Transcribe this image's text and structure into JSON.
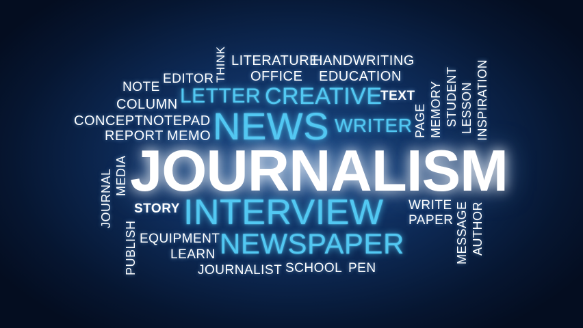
{
  "words": {
    "journalism": "JOURNALISM",
    "interview": "INTERVIEW",
    "news": "NEWS",
    "newspaper": "NEWSPAPER",
    "creative": "CREATIVE",
    "letter": "LETTER",
    "writer": "WRITER",
    "literature": "LITERATURE",
    "handwriting": "HANDWRITING",
    "office": "OFFICE",
    "education": "EDUCATION",
    "editor": "EDITOR",
    "note": "NOTE",
    "column": "COLUMN",
    "concept": "CONCEPT",
    "notepad": "NOTEPAD",
    "report": "REPORT",
    "memo": "MEMO",
    "text": "TEXT",
    "think": "THINK",
    "page": "PAGE",
    "memory": "MEMORY",
    "student": "STUDENT",
    "lesson": "LESSON",
    "inspiration": "INSPIRATION",
    "journal": "JOURNAL",
    "media": "MEDIA",
    "story": "STORY",
    "publish": "PUBLISH",
    "equipment": "EQUIPMENT",
    "learn": "LEARN",
    "journalist": "JOURNALIST",
    "school": "SCHOOL",
    "pen": "PEN",
    "write": "WRITE",
    "paper": "PAPER",
    "message": "MESSAGE",
    "author": "AUTHOR"
  },
  "colors": {
    "background": "#0e2c5a",
    "white_words": "#ffffff",
    "blue_words": "#52c8f2"
  }
}
